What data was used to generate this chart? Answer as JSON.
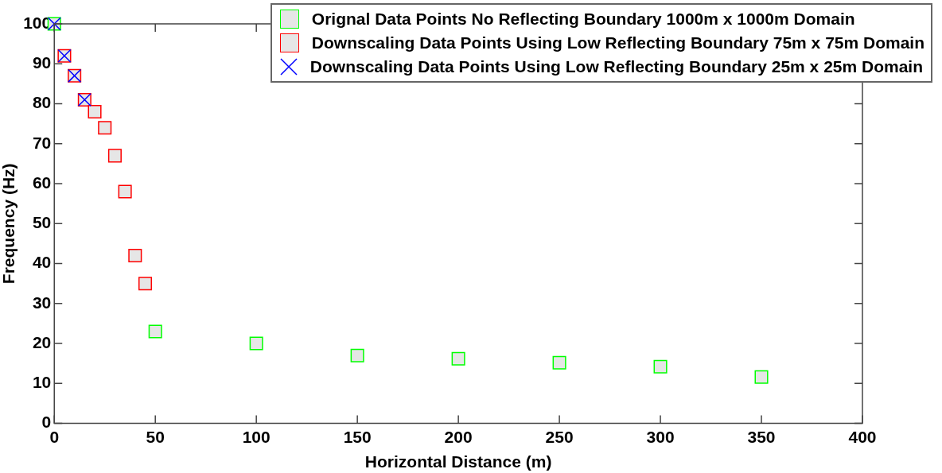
{
  "chart_data": {
    "type": "scatter",
    "xlabel": "Horizontal Distance (m)",
    "ylabel": "Frequency (Hz)",
    "xlim": [
      0,
      400
    ],
    "xticks": [
      0,
      50,
      100,
      150,
      200,
      250,
      300,
      350,
      400
    ],
    "ylim": [
      0,
      100
    ],
    "yticks": [
      0,
      10,
      20,
      30,
      40,
      50,
      60,
      70,
      80,
      90,
      100
    ],
    "grid": false,
    "legend": "top right",
    "series": [
      {
        "name": "Orignal Data Points No Reflecting Boundary 1000m x 1000m Domain",
        "color": "#00ff00",
        "marker": "square",
        "x": [
          0,
          50,
          100,
          150,
          200,
          250,
          300,
          350
        ],
        "values": [
          100,
          23,
          20,
          17,
          16.2,
          15.2,
          14.2,
          11.6
        ]
      },
      {
        "name": "Downscaling Data Points Using Low Reflecting Boundary 75m x 75m Domain",
        "color": "#ff0000",
        "marker": "square",
        "x": [
          5,
          10,
          15,
          20,
          25,
          30,
          35,
          40,
          45
        ],
        "values": [
          92,
          87,
          81,
          78,
          74,
          67,
          58,
          42,
          35
        ]
      },
      {
        "name": "Downscaling Data Points Using Low Reflecting Boundary 25m x 25m Domain",
        "color": "#0000ff",
        "marker": "cross",
        "x": [
          0,
          5,
          10,
          15
        ],
        "values": [
          100,
          92,
          87,
          81
        ]
      }
    ]
  }
}
